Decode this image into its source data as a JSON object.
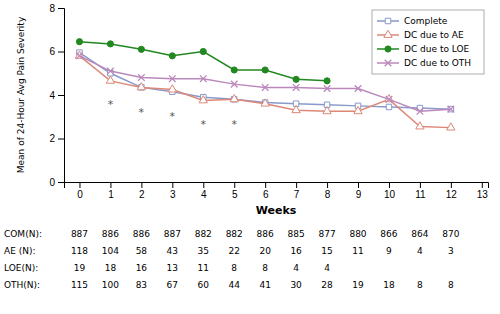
{
  "chart_data": {
    "type": "line",
    "x": [
      0,
      1,
      2,
      3,
      4,
      5,
      6,
      7,
      8,
      9,
      10,
      11,
      12
    ],
    "series": [
      {
        "name": "Complete",
        "color": "#8899CC",
        "marker": "square",
        "values": [
          5.95,
          5.0,
          4.35,
          4.15,
          3.9,
          3.8,
          3.65,
          3.6,
          3.55,
          3.5,
          3.45,
          3.4,
          3.35
        ]
      },
      {
        "name": "DC due to AE",
        "color": "#DD8877",
        "marker": "triangle",
        "values": [
          5.8,
          4.65,
          4.35,
          4.25,
          3.75,
          3.8,
          3.6,
          3.3,
          3.25,
          3.25,
          3.8,
          2.55,
          2.5
        ]
      },
      {
        "name": "DC due to LOE",
        "color": "#228822",
        "marker": "circle",
        "values": [
          6.45,
          6.35,
          6.1,
          5.8,
          6.0,
          5.15,
          5.15,
          4.72,
          4.65,
          null,
          null,
          null,
          null
        ]
      },
      {
        "name": "DC due to OTH",
        "color": "#BB88BB",
        "marker": "x",
        "values": [
          5.8,
          5.1,
          4.8,
          4.75,
          4.75,
          4.5,
          4.35,
          4.35,
          4.3,
          4.3,
          3.8,
          3.25,
          3.35
        ]
      }
    ],
    "annotations": [
      {
        "text": "*",
        "x": 1,
        "y": 3.55
      },
      {
        "text": "*",
        "x": 2,
        "y": 3.2
      },
      {
        "text": "*",
        "x": 3,
        "y": 3.0
      },
      {
        "text": "*",
        "x": 4,
        "y": 2.65
      },
      {
        "text": "*",
        "x": 5,
        "y": 2.65
      }
    ],
    "xlabel": "Weeks",
    "ylabel": "Mean of 24-Hour Avg Pain Severity",
    "xlim": [
      -0.5,
      13.2
    ],
    "xticks": [
      0,
      1,
      2,
      3,
      4,
      5,
      6,
      7,
      8,
      9,
      10,
      11,
      12,
      13
    ],
    "ylim": [
      0,
      8
    ],
    "yticks": [
      0,
      2,
      4,
      6,
      8
    ],
    "legend": "upper right",
    "table": {
      "row_labels": [
        "COM(N):",
        "AE (N):",
        "LOE(N):",
        "OTH(N):"
      ],
      "values": [
        [
          887,
          886,
          886,
          887,
          882,
          882,
          886,
          885,
          877,
          880,
          866,
          864,
          870
        ],
        [
          118,
          104,
          58,
          43,
          35,
          22,
          20,
          16,
          15,
          11,
          9,
          4,
          3
        ],
        [
          19,
          18,
          16,
          13,
          11,
          8,
          8,
          4,
          4,
          null,
          null,
          null,
          null
        ],
        [
          115,
          100,
          83,
          67,
          60,
          44,
          41,
          30,
          28,
          19,
          18,
          8,
          8
        ]
      ]
    }
  }
}
